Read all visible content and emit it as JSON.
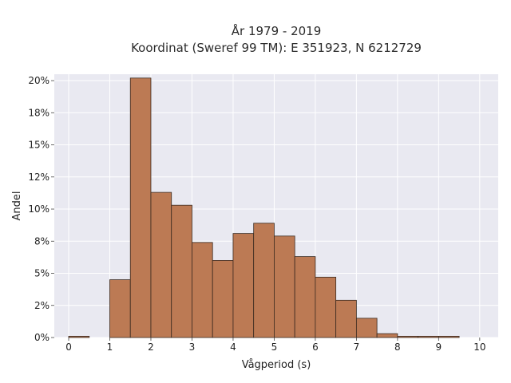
{
  "chart_data": {
    "type": "bar",
    "title": [
      "År 1979 - 2019",
      "Koordinat (Sweref 99 TM): E 351923, N 6212729"
    ],
    "xlabel": "Vågperiod (s)",
    "ylabel": "Andel",
    "xlim": [
      -0.35,
      10.45
    ],
    "ylim": [
      0,
      0.205
    ],
    "xticks": [
      0,
      1,
      2,
      3,
      4,
      5,
      6,
      7,
      8,
      9,
      10
    ],
    "xtick_labels": [
      "0",
      "1",
      "2",
      "3",
      "4",
      "5",
      "6",
      "7",
      "8",
      "9",
      "10"
    ],
    "yticks": [
      0,
      0.025,
      0.05,
      0.075,
      0.1,
      0.125,
      0.15,
      0.175,
      0.2
    ],
    "ytick_labels": [
      "0%",
      "2%",
      "5%",
      "8%",
      "10%",
      "12%",
      "15%",
      "18%",
      "20%"
    ],
    "bin_width": 0.5,
    "bins_start": [
      0,
      0.5,
      1,
      1.5,
      2,
      2.5,
      3,
      3.5,
      4,
      4.5,
      5,
      5.5,
      6,
      6.5,
      7,
      7.5,
      8,
      8.5,
      9,
      9.5
    ],
    "values": [
      0.001,
      0,
      0.045,
      0.202,
      0.113,
      0.103,
      0.074,
      0.06,
      0.081,
      0.089,
      0.079,
      0.063,
      0.047,
      0.029,
      0.015,
      0.003,
      0.001,
      0.001,
      0.001,
      0
    ],
    "grid": true,
    "colors": {
      "bar_fill": "#bc7a54",
      "bar_edge": "#3a2a20",
      "plot_bg": "#e9e9f1",
      "grid": "#ffffff"
    }
  }
}
